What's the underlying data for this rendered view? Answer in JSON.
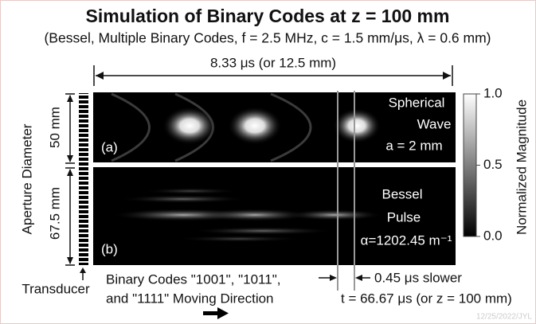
{
  "title": "Simulation of Binary Codes at z = 100 mm",
  "subtitle": "(Bessel, Multiple Binary Codes, f = 2.5 MHz, c = 1.5 mm/μs, λ = 0.6 mm)",
  "duration_label": "8.33 μs (or 12.5 mm)",
  "y_axis_label": "Aperture Diameter",
  "panels": [
    {
      "tag": "(a)",
      "aperture": "50 mm",
      "caption": [
        "Spherical",
        "Wave",
        "a = 2 mm"
      ]
    },
    {
      "tag": "(b)",
      "aperture": "67.5 mm",
      "caption": [
        "Bessel",
        "Pulse",
        "α=1202.45 m⁻¹"
      ]
    }
  ],
  "colorbar": {
    "label": "Normalized Magnitude",
    "lim": [
      0,
      1
    ],
    "ticks": [
      {
        "value": 0,
        "label": "0.0"
      },
      0.5,
      {
        "value": 1,
        "label": "1.0"
      }
    ]
  },
  "transducer_label": "Transducer",
  "direction_label": [
    "Binary Codes \"1001\", \"1011\",",
    "and \"1111\" Moving Direction"
  ],
  "delay_label": "0.45 μs slower",
  "time_label": "t = 66.67 μs (or z = 100 mm)",
  "watermark": "12/25/2022/JYL"
}
